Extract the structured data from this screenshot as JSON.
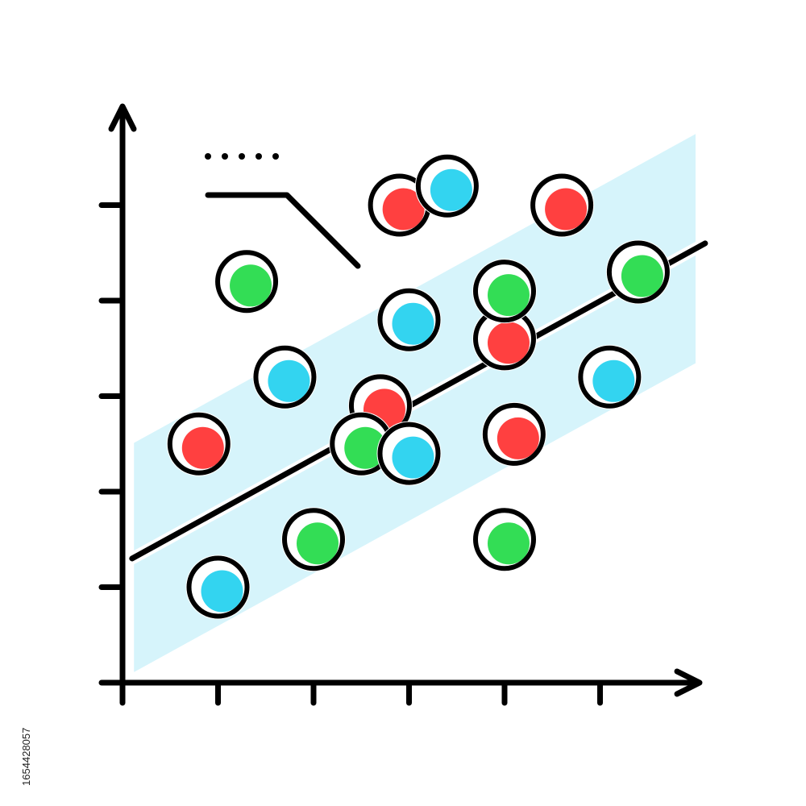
{
  "chart_data": {
    "type": "scatter",
    "title": "",
    "xlabel": "",
    "ylabel": "",
    "x_ticks": [
      1,
      2,
      3,
      4,
      5
    ],
    "y_ticks": [
      1,
      2,
      3,
      4,
      5
    ],
    "xlim": [
      0,
      6
    ],
    "ylim": [
      0,
      6
    ],
    "grid": false,
    "colors": {
      "red": "#ff4040",
      "green": "#33dd55",
      "blue": "#33d4f0",
      "band": "#d6f4fb",
      "line": "#000000"
    },
    "series": [
      {
        "color": "red",
        "points": [
          {
            "x": 2.9,
            "y": 5.0
          },
          {
            "x": 4.6,
            "y": 5.0
          },
          {
            "x": 4.0,
            "y": 3.6
          },
          {
            "x": 2.7,
            "y": 2.9
          },
          {
            "x": 0.8,
            "y": 2.5
          },
          {
            "x": 4.1,
            "y": 2.6
          }
        ]
      },
      {
        "color": "green",
        "points": [
          {
            "x": 1.3,
            "y": 4.2
          },
          {
            "x": 4.0,
            "y": 4.1
          },
          {
            "x": 5.4,
            "y": 4.3
          },
          {
            "x": 2.5,
            "y": 2.5
          },
          {
            "x": 2.0,
            "y": 1.5
          },
          {
            "x": 4.0,
            "y": 1.5
          }
        ]
      },
      {
        "color": "blue",
        "points": [
          {
            "x": 3.4,
            "y": 5.2
          },
          {
            "x": 3.0,
            "y": 3.8
          },
          {
            "x": 1.7,
            "y": 3.2
          },
          {
            "x": 5.1,
            "y": 3.2
          },
          {
            "x": 3.0,
            "y": 2.4
          },
          {
            "x": 1.0,
            "y": 1.0
          }
        ]
      }
    ],
    "trendline": {
      "x0": 0.1,
      "y0": 1.3,
      "x1": 6.1,
      "y1": 4.6
    },
    "confidence_band": {
      "half_width": 1.2
    }
  },
  "stock_id": "1654428057"
}
